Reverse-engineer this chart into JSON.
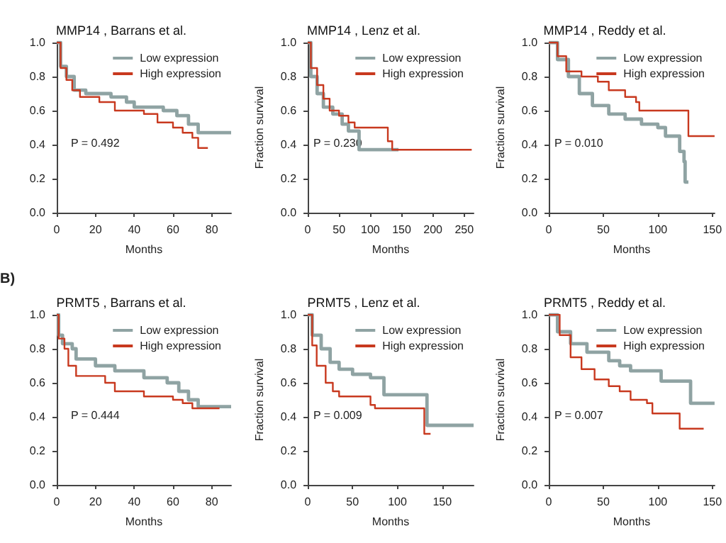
{
  "chart_data": [
    {
      "type": "step",
      "title": "MMP14 , Barrans et al.",
      "xlabel": "Months",
      "legend": "top right",
      "annotations": [
        "P = 0.492"
      ],
      "xlim": [
        0,
        90
      ],
      "xticks": [
        0,
        20,
        40,
        60,
        80
      ],
      "ylim": [
        0,
        1
      ],
      "yticks": [
        {
          "value": 0,
          "label": "0.0"
        },
        {
          "value": 0.2,
          "label": "0.2"
        },
        {
          "value": 0.4,
          "label": "0.4"
        },
        {
          "value": 0.6,
          "label": "0.6"
        },
        {
          "value": 0.8,
          "label": "0.8"
        },
        {
          "value": 1,
          "label": "1.0"
        }
      ],
      "series": [
        {
          "name": "Low expression",
          "color": "#8fa3a3",
          "x": [
            0,
            2,
            5,
            9,
            15,
            28,
            36,
            40,
            55,
            62,
            68,
            73,
            90
          ],
          "values": [
            1,
            0.86,
            0.8,
            0.72,
            0.7,
            0.68,
            0.65,
            0.62,
            0.6,
            0.57,
            0.52,
            0.47,
            0.47
          ]
        },
        {
          "name": "High expression",
          "color": "#c8391f",
          "x": [
            0,
            2,
            5,
            8,
            12,
            22,
            30,
            45,
            52,
            60,
            65,
            70,
            73,
            78
          ],
          "values": [
            1,
            0.85,
            0.78,
            0.72,
            0.68,
            0.65,
            0.6,
            0.58,
            0.53,
            0.5,
            0.47,
            0.44,
            0.38,
            0.38
          ]
        }
      ]
    },
    {
      "type": "step",
      "title": "MMP14 , Lenz et al.",
      "xlabel": "Months",
      "ylabel": "Fraction survival",
      "legend": "top right",
      "annotations": [
        "P = 0.230"
      ],
      "xlim": [
        0,
        265
      ],
      "xticks": [
        0,
        50,
        100,
        150,
        200,
        250
      ],
      "ylim": [
        0,
        1
      ],
      "yticks": [
        {
          "value": 0,
          "label": "0.0"
        },
        {
          "value": 0.2,
          "label": "0.2"
        },
        {
          "value": 0.4,
          "label": "0.4"
        },
        {
          "value": 0.6,
          "label": "0.6"
        },
        {
          "value": 0.8,
          "label": "0.8"
        },
        {
          "value": 1,
          "label": "1.0"
        }
      ],
      "series": [
        {
          "name": "Low expression",
          "color": "#8fa3a3",
          "x": [
            0,
            5,
            15,
            25,
            40,
            55,
            65,
            82,
            145
          ],
          "values": [
            1,
            0.8,
            0.7,
            0.62,
            0.58,
            0.52,
            0.48,
            0.37,
            0.37
          ]
        },
        {
          "name": "High expression",
          "color": "#c8391f",
          "x": [
            0,
            5,
            15,
            25,
            35,
            50,
            65,
            75,
            128,
            135,
            262
          ],
          "values": [
            1,
            0.85,
            0.75,
            0.67,
            0.6,
            0.57,
            0.53,
            0.5,
            0.42,
            0.37,
            0.37
          ]
        }
      ]
    },
    {
      "type": "step",
      "title": "MMP14 , Reddy et al.",
      "xlabel": "Months",
      "ylabel": "Fraction survival",
      "legend": "top right",
      "annotations": [
        "P = 0.010"
      ],
      "xlim": [
        0,
        152
      ],
      "xticks": [
        0,
        50,
        100,
        150
      ],
      "ylim": [
        0,
        1
      ],
      "yticks": [
        {
          "value": 0,
          "label": "0.0"
        },
        {
          "value": 0.2,
          "label": "0.2"
        },
        {
          "value": 0.4,
          "label": "0.4"
        },
        {
          "value": 0.6,
          "label": "0.6"
        },
        {
          "value": 0.8,
          "label": "0.8"
        },
        {
          "value": 1,
          "label": "1.0"
        }
      ],
      "series": [
        {
          "name": "Low expression",
          "color": "#8fa3a3",
          "x": [
            0,
            8,
            18,
            28,
            40,
            55,
            70,
            85,
            100,
            107,
            120,
            124,
            125,
            128
          ],
          "values": [
            1,
            0.9,
            0.8,
            0.7,
            0.63,
            0.58,
            0.55,
            0.52,
            0.5,
            0.45,
            0.36,
            0.3,
            0.18,
            0.18
          ]
        },
        {
          "name": "High expression",
          "color": "#c8391f",
          "x": [
            0,
            8,
            16,
            30,
            45,
            55,
            70,
            80,
            83,
            128,
            152
          ],
          "values": [
            1,
            0.92,
            0.83,
            0.8,
            0.77,
            0.72,
            0.68,
            0.65,
            0.6,
            0.45,
            0.45
          ]
        }
      ]
    },
    {
      "type": "step",
      "title": "PRMT5 , Barrans et al.",
      "xlabel": "Months",
      "legend": "top right",
      "annotations": [
        "B)",
        "P = 0.444"
      ],
      "xlim": [
        0,
        90
      ],
      "xticks": [
        0,
        20,
        40,
        60,
        80
      ],
      "ylim": [
        0,
        1
      ],
      "yticks": [
        {
          "value": 0,
          "label": "0.0"
        },
        {
          "value": 0.2,
          "label": "0.2"
        },
        {
          "value": 0.4,
          "label": "0.4"
        },
        {
          "value": 0.6,
          "label": "0.6"
        },
        {
          "value": 0.8,
          "label": "0.8"
        },
        {
          "value": 1,
          "label": "1.0"
        }
      ],
      "series": [
        {
          "name": "Low expression",
          "color": "#8fa3a3",
          "x": [
            0,
            1,
            3,
            8,
            10,
            20,
            30,
            45,
            57,
            63,
            68,
            73,
            90
          ],
          "values": [
            1,
            0.88,
            0.83,
            0.8,
            0.74,
            0.7,
            0.67,
            0.63,
            0.6,
            0.55,
            0.5,
            0.46,
            0.46
          ]
        },
        {
          "name": "High expression",
          "color": "#c8391f",
          "x": [
            0,
            1,
            4,
            6,
            10,
            25,
            30,
            45,
            60,
            65,
            70,
            84
          ],
          "values": [
            1,
            0.86,
            0.8,
            0.7,
            0.64,
            0.6,
            0.55,
            0.52,
            0.5,
            0.48,
            0.45,
            0.45
          ]
        }
      ]
    },
    {
      "type": "step",
      "title": "PRMT5 , Lenz et al.",
      "xlabel": "Months",
      "ylabel": "Fraction survival",
      "legend": "top right",
      "annotations": [
        "P = 0.009"
      ],
      "xlim": [
        0,
        185
      ],
      "xticks": [
        0,
        50,
        100,
        150
      ],
      "ylim": [
        0,
        1
      ],
      "yticks": [
        {
          "value": 0,
          "label": "0.0"
        },
        {
          "value": 0.2,
          "label": "0.2"
        },
        {
          "value": 0.4,
          "label": "0.4"
        },
        {
          "value": 0.6,
          "label": "0.6"
        },
        {
          "value": 0.8,
          "label": "0.8"
        },
        {
          "value": 1,
          "label": "1.0"
        }
      ],
      "series": [
        {
          "name": "Low expression",
          "color": "#8fa3a3",
          "x": [
            0,
            5,
            15,
            25,
            35,
            50,
            70,
            85,
            133,
            185
          ],
          "values": [
            1,
            0.88,
            0.8,
            0.72,
            0.68,
            0.65,
            0.63,
            0.53,
            0.35,
            0.35
          ]
        },
        {
          "name": "High expression",
          "color": "#c8391f",
          "x": [
            0,
            5,
            10,
            20,
            28,
            35,
            70,
            75,
            130,
            137
          ],
          "values": [
            1,
            0.82,
            0.7,
            0.6,
            0.55,
            0.52,
            0.47,
            0.45,
            0.3,
            0.3
          ]
        }
      ]
    },
    {
      "type": "step",
      "title": "PRMT5 , Reddy et al.",
      "xlabel": "Months",
      "ylabel": "Fraction survival",
      "legend": "top right",
      "annotations": [
        "P = 0.007"
      ],
      "xlim": [
        0,
        152
      ],
      "xticks": [
        0,
        50,
        100,
        150
      ],
      "ylim": [
        0,
        1
      ],
      "yticks": [
        {
          "value": 0,
          "label": "0.0"
        },
        {
          "value": 0.2,
          "label": "0.2"
        },
        {
          "value": 0.4,
          "label": "0.4"
        },
        {
          "value": 0.6,
          "label": "0.6"
        },
        {
          "value": 0.8,
          "label": "0.8"
        },
        {
          "value": 1,
          "label": "1.0"
        }
      ],
      "series": [
        {
          "name": "Low expression",
          "color": "#8fa3a3",
          "x": [
            0,
            8,
            20,
            35,
            55,
            65,
            75,
            103,
            130,
            152
          ],
          "values": [
            1,
            0.9,
            0.83,
            0.78,
            0.73,
            0.7,
            0.67,
            0.61,
            0.48,
            0.48
          ]
        },
        {
          "name": "High expression",
          "color": "#c8391f",
          "x": [
            0,
            10,
            20,
            30,
            42,
            55,
            65,
            75,
            90,
            95,
            120,
            142
          ],
          "values": [
            1,
            0.88,
            0.75,
            0.68,
            0.62,
            0.58,
            0.55,
            0.5,
            0.48,
            0.42,
            0.33,
            0.33
          ]
        }
      ]
    }
  ]
}
